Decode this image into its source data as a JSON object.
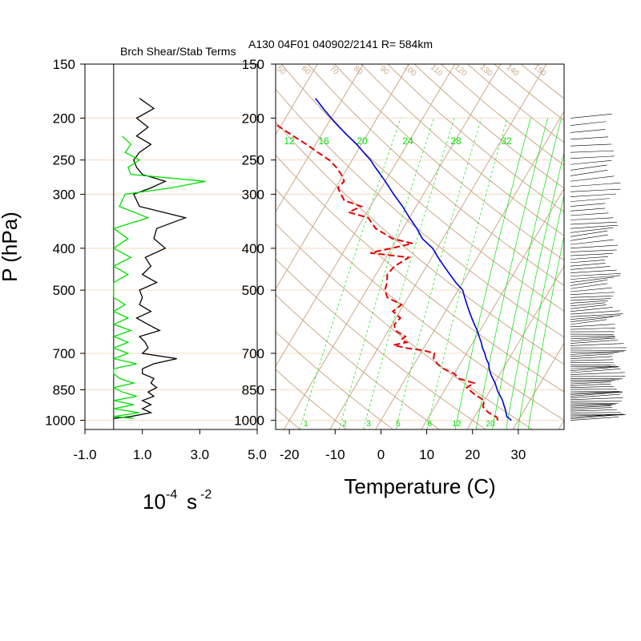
{
  "colors": {
    "isobar": "#f5dcc4",
    "isotherm": "#c9a987",
    "mixing_ratio": "#00e000",
    "temperature": "#0000dd",
    "dewpoint": "#e00000",
    "shear": "#000000",
    "stability": "#00dd00",
    "wind_barb": "#000000"
  },
  "chart_data": [
    {
      "type": "line",
      "title": "Brch Shear/Stab Terms",
      "xlabel": "10",
      "xlabel_exponent": "-4",
      "xlabel_unit": "s",
      "xlabel_unit_exponent": "-2",
      "ylabel": "P (hPa)",
      "xlim": [
        -1.0,
        5.0
      ],
      "ylim": [
        1050,
        150
      ],
      "y_scale": "log",
      "xticks": [
        "-1.0",
        "1.0",
        "3.0",
        "5.0"
      ],
      "yticks": [
        "150",
        "200",
        "250",
        "300",
        "400",
        "500",
        "700",
        "850",
        "1000"
      ],
      "series": [
        {
          "key": "shear",
          "pressure": [
            990,
            980,
            960,
            940,
            920,
            900,
            880,
            860,
            840,
            820,
            800,
            780,
            760,
            740,
            720,
            700,
            680,
            660,
            640,
            620,
            600,
            580,
            560,
            540,
            520,
            500,
            480,
            460,
            440,
            420,
            400,
            380,
            360,
            340,
            320,
            300,
            290,
            280,
            270,
            260,
            250,
            240,
            230,
            220,
            210,
            200,
            190,
            180
          ],
          "values": [
            0.0,
            0.6,
            1.3,
            1.0,
            1.3,
            1.0,
            1.4,
            1.2,
            1.5,
            1.3,
            1.4,
            1.0,
            1.0,
            1.4,
            2.2,
            1.0,
            1.2,
            1.1,
            0.9,
            1.6,
            1.2,
            0.8,
            1.3,
            0.9,
            1.0,
            0.9,
            1.5,
            1.0,
            1.3,
            1.1,
            1.8,
            1.4,
            1.5,
            2.5,
            0.9,
            0.7,
            1.3,
            1.8,
            1.0,
            0.8,
            0.7,
            0.9,
            1.3,
            0.8,
            1.2,
            0.8,
            1.4,
            0.9
          ]
        },
        {
          "key": "stability",
          "pressure": [
            990,
            980,
            960,
            940,
            920,
            900,
            880,
            860,
            840,
            820,
            800,
            780,
            760,
            740,
            720,
            700,
            680,
            660,
            640,
            620,
            600,
            580,
            560,
            540,
            520,
            500,
            480,
            460,
            440,
            420,
            400,
            380,
            360,
            340,
            320,
            300,
            290,
            280,
            270,
            260,
            250,
            240,
            230,
            220
          ],
          "values": [
            0.7,
            0.0,
            0.9,
            0.0,
            0.7,
            0.0,
            0.8,
            0.3,
            0.0,
            0.7,
            0.2,
            0.0,
            0.0,
            0.8,
            0.0,
            0.5,
            0.0,
            0.5,
            0.0,
            0.6,
            0.0,
            0.5,
            0.0,
            0.4,
            0.0,
            0.0,
            0.0,
            0.5,
            0.0,
            0.6,
            0.0,
            0.5,
            0.0,
            1.2,
            0.2,
            0.4,
            2.0,
            3.2,
            0.6,
            0.5,
            0.9,
            0.4,
            0.6,
            0.3
          ]
        }
      ]
    },
    {
      "type": "line",
      "title": "A130 04F01 040902/2141 R= 584km",
      "xlabel": "Temperature (C)",
      "ylabel": "",
      "xlim": [
        -23,
        40
      ],
      "ylim": [
        1050,
        150
      ],
      "y_scale": "log",
      "skew_deg_per_decade": 56,
      "xticks": [
        "-20",
        "-10",
        "0",
        "10",
        "20",
        "30"
      ],
      "yticks": [
        "150",
        "200",
        "250",
        "300",
        "400",
        "500",
        "700",
        "850",
        "1000"
      ],
      "grid": true,
      "mixing_ratio_labels": [
        "12",
        "16",
        "20",
        "24",
        "28",
        "32"
      ],
      "mixing_ratio_labels_low": [
        "1",
        "2",
        "3",
        "5",
        "8",
        "12",
        "20"
      ],
      "dry_adiabat_labels": [
        "50",
        "60",
        "70",
        "80",
        "90",
        "100",
        "110",
        "120",
        "130",
        "140",
        "150"
      ],
      "series": [
        {
          "key": "temperature",
          "pressure": [
            1000,
            980,
            950,
            925,
            900,
            880,
            860,
            840,
            820,
            800,
            780,
            760,
            740,
            720,
            700,
            680,
            660,
            640,
            620,
            600,
            580,
            560,
            540,
            520,
            500,
            480,
            460,
            440,
            420,
            400,
            380,
            360,
            340,
            320,
            300,
            280,
            260,
            250,
            240,
            230,
            220,
            210,
            200,
            190,
            180
          ],
          "values": [
            28.5,
            27.0,
            26.0,
            25.0,
            24.0,
            23.0,
            21.9,
            21.0,
            20.1,
            19.0,
            17.9,
            17.0,
            16.2,
            15.0,
            14.0,
            12.8,
            11.8,
            10.6,
            9.4,
            8.0,
            6.6,
            5.2,
            3.8,
            2.4,
            1.0,
            -1.5,
            -3.8,
            -6.2,
            -8.6,
            -11.0,
            -14.5,
            -17.0,
            -20.0,
            -23.0,
            -26.5,
            -30.0,
            -34.0,
            -36.0,
            -38.5,
            -41.0,
            -44.0,
            -47.0,
            -50.0,
            -53.0,
            -56.0
          ]
        },
        {
          "key": "dewpoint",
          "pressure": [
            1000,
            985,
            960,
            930,
            900,
            870,
            840,
            820,
            800,
            780,
            760,
            740,
            720,
            700,
            690,
            680,
            670,
            660,
            650,
            640,
            620,
            600,
            580,
            560,
            540,
            520,
            500,
            480,
            460,
            440,
            420,
            410,
            400,
            390,
            380,
            360,
            340,
            330,
            320,
            310,
            300,
            290,
            280,
            270,
            260,
            250,
            240,
            230,
            220,
            210,
            200
          ],
          "values": [
            25.5,
            25.0,
            22.5,
            20.5,
            20.0,
            17.0,
            14.5,
            15.5,
            11.5,
            10.0,
            7.0,
            5.0,
            3.5,
            3.0,
            0.5,
            -4.0,
            -7.0,
            -4.5,
            -6.0,
            -5.5,
            -8.5,
            -9.5,
            -9.0,
            -11.5,
            -10.5,
            -14.5,
            -16.0,
            -16.5,
            -17.5,
            -17.0,
            -15.0,
            -24.0,
            -20.0,
            -16.0,
            -21.0,
            -26.0,
            -29.0,
            -34.0,
            -32.0,
            -36.5,
            -38.0,
            -39.5,
            -39.0,
            -40.5,
            -42.5,
            -45.0,
            -48.5,
            -52.0,
            -56.0,
            -60.0,
            -64.0
          ]
        }
      ]
    }
  ]
}
